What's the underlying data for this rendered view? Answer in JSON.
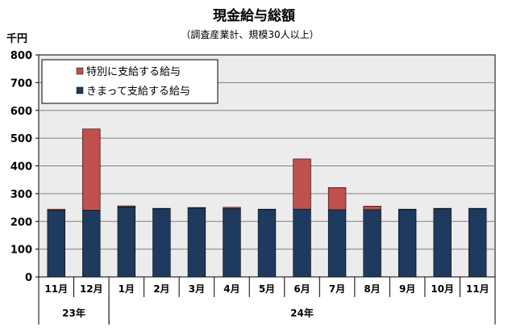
{
  "chart_data": {
    "type": "bar",
    "stacked": true,
    "title": "現金給与総額",
    "subtitle": "（調査産業計、規模30人以上）",
    "ylabel": "千円",
    "ylim": [
      0,
      800
    ],
    "yticks": [
      0,
      100,
      200,
      300,
      400,
      500,
      600,
      700,
      800
    ],
    "grid": true,
    "legend_position": "top-left",
    "categories": [
      "11月",
      "12月",
      "1月",
      "2月",
      "3月",
      "4月",
      "5月",
      "6月",
      "7月",
      "8月",
      "9月",
      "10月",
      "11月"
    ],
    "year_groups": [
      {
        "label": "23年",
        "start": 0,
        "end": 1
      },
      {
        "label": "24年",
        "start": 2,
        "end": 12
      }
    ],
    "series": [
      {
        "name": "きまって支給する給与",
        "color": "#1f3a5f",
        "values": [
          240,
          240,
          252,
          246,
          249,
          246,
          243,
          244,
          242,
          242,
          243,
          246,
          246
        ]
      },
      {
        "name": "特別に支給する給与",
        "color": "#c0504d",
        "values": [
          4,
          293,
          4,
          1,
          1,
          5,
          1,
          181,
          80,
          13,
          1,
          1,
          1
        ]
      }
    ]
  }
}
